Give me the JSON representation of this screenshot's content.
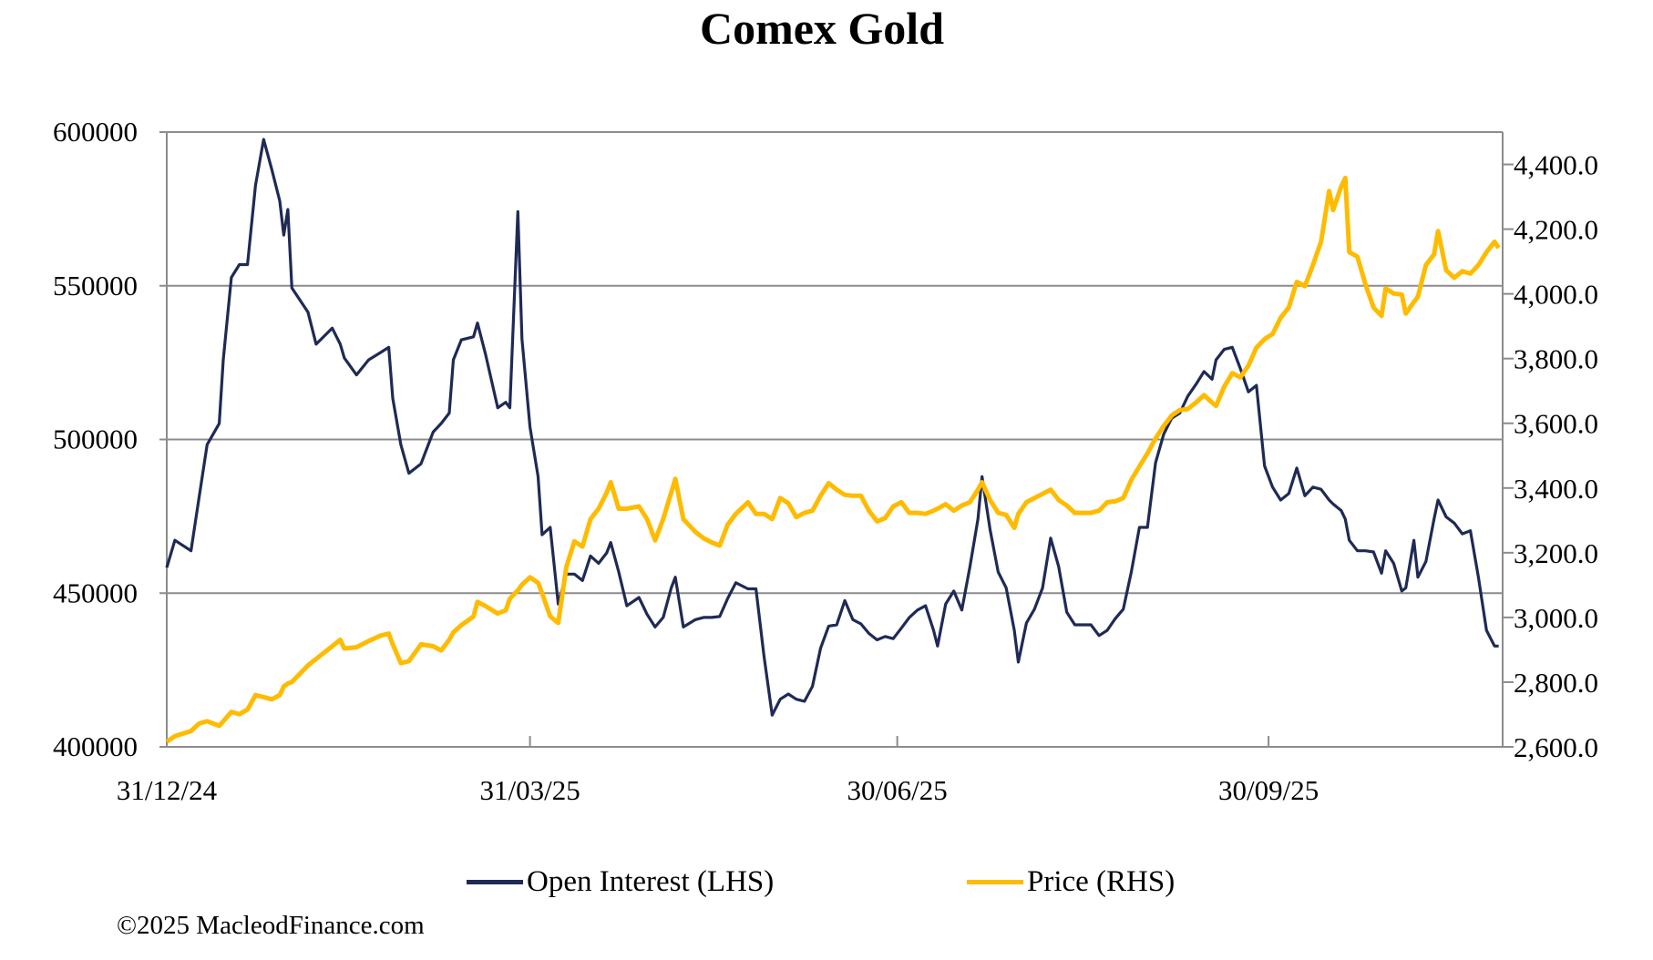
{
  "chart_data": {
    "type": "line",
    "title": "Comex Gold",
    "xlabel": "",
    "ylabel": "",
    "xlim": [
      "2024-12-31",
      "2025-11-27"
    ],
    "x_tick_labels": [
      "31/12/24",
      "31/03/25",
      "30/06/25",
      "30/09/25"
    ],
    "x_tick_dates": [
      "2024-12-31",
      "2025-03-31",
      "2025-06-30",
      "2025-09-30"
    ],
    "y_left": {
      "lim": [
        400000,
        600000
      ],
      "ticks": [
        400000,
        450000,
        500000,
        550000,
        600000
      ],
      "tick_labels": [
        "400000",
        "450000",
        "500000",
        "550000",
        "600000"
      ]
    },
    "y_right": {
      "lim": [
        2600,
        4500
      ],
      "ticks": [
        2600,
        2800,
        3000,
        3200,
        3400,
        3600,
        3800,
        4000,
        4200,
        4400
      ],
      "tick_labels": [
        "2,600.0",
        "2,800.0",
        "3,000.0",
        "3,200.0",
        "3,400.0",
        "3,600.0",
        "3,800.0",
        "4,000.0",
        "4,200.0",
        "4,400.0"
      ]
    },
    "grid": "horizontal major lines (left axis)",
    "legend_position": "bottom",
    "x": [
      "2024-12-31",
      "2025-01-02",
      "2025-01-06",
      "2025-01-08",
      "2025-01-10",
      "2025-01-13",
      "2025-01-14",
      "2025-01-16",
      "2025-01-18",
      "2025-01-20",
      "2025-01-22",
      "2025-01-24",
      "2025-01-26",
      "2025-01-28",
      "2025-01-29",
      "2025-01-30",
      "2025-01-31",
      "2025-02-04",
      "2025-02-06",
      "2025-02-10",
      "2025-02-12",
      "2025-02-13",
      "2025-02-16",
      "2025-02-19",
      "2025-02-22",
      "2025-02-24",
      "2025-02-25",
      "2025-02-27",
      "2025-03-01",
      "2025-03-04",
      "2025-03-07",
      "2025-03-09",
      "2025-03-11",
      "2025-03-12",
      "2025-03-14",
      "2025-03-17",
      "2025-03-18",
      "2025-03-20",
      "2025-03-23",
      "2025-03-25",
      "2025-03-26",
      "2025-03-28",
      "2025-03-29",
      "2025-03-31",
      "2025-04-02",
      "2025-04-03",
      "2025-04-05",
      "2025-04-07",
      "2025-04-09",
      "2025-04-11",
      "2025-04-13",
      "2025-04-15",
      "2025-04-17",
      "2025-04-19",
      "2025-04-20",
      "2025-04-22",
      "2025-04-24",
      "2025-04-27",
      "2025-04-29",
      "2025-05-01",
      "2025-05-03",
      "2025-05-05",
      "2025-05-06",
      "2025-05-08",
      "2025-05-11",
      "2025-05-13",
      "2025-05-15",
      "2025-05-17",
      "2025-05-19",
      "2025-05-21",
      "2025-05-24",
      "2025-05-26",
      "2025-05-28",
      "2025-05-30",
      "2025-06-01",
      "2025-06-03",
      "2025-06-05",
      "2025-06-07",
      "2025-06-09",
      "2025-06-11",
      "2025-06-13",
      "2025-06-15",
      "2025-06-17",
      "2025-06-19",
      "2025-06-21",
      "2025-06-23",
      "2025-06-25",
      "2025-06-27",
      "2025-06-29",
      "2025-07-01",
      "2025-07-03",
      "2025-07-05",
      "2025-07-07",
      "2025-07-09",
      "2025-07-10",
      "2025-07-12",
      "2025-07-14",
      "2025-07-16",
      "2025-07-18",
      "2025-07-20",
      "2025-07-21",
      "2025-07-23",
      "2025-07-25",
      "2025-07-27",
      "2025-07-29",
      "2025-07-30",
      "2025-08-01",
      "2025-08-03",
      "2025-08-05",
      "2025-08-07",
      "2025-08-09",
      "2025-08-11",
      "2025-08-13",
      "2025-08-15",
      "2025-08-17",
      "2025-08-19",
      "2025-08-21",
      "2025-08-23",
      "2025-08-25",
      "2025-08-27",
      "2025-08-29",
      "2025-08-31",
      "2025-09-02",
      "2025-09-04",
      "2025-09-06",
      "2025-09-08",
      "2025-09-10",
      "2025-09-12",
      "2025-09-14",
      "2025-09-16",
      "2025-09-17",
      "2025-09-19",
      "2025-09-21",
      "2025-09-23",
      "2025-09-25",
      "2025-09-27",
      "2025-09-29",
      "2025-10-01",
      "2025-10-03",
      "2025-10-05",
      "2025-10-07",
      "2025-10-09",
      "2025-10-11",
      "2025-10-13",
      "2025-10-15",
      "2025-10-16",
      "2025-10-18",
      "2025-10-19",
      "2025-10-20",
      "2025-10-22",
      "2025-10-24",
      "2025-10-26",
      "2025-10-28",
      "2025-10-29",
      "2025-10-31",
      "2025-11-02",
      "2025-11-03",
      "2025-11-05",
      "2025-11-06",
      "2025-11-08",
      "2025-11-10",
      "2025-11-11",
      "2025-11-13",
      "2025-11-15",
      "2025-11-17",
      "2025-11-19",
      "2025-11-21",
      "2025-11-23",
      "2025-11-25",
      "2025-11-26"
    ],
    "series": [
      {
        "name": "Open Interest (LHS)",
        "axis": "left",
        "color": "#1F2A55",
        "values": [
          458300,
          467200,
          463800,
          481000,
          498300,
          505200,
          525900,
          552700,
          556900,
          556900,
          582700,
          597600,
          587900,
          577600,
          566500,
          574800,
          549300,
          541400,
          531000,
          536200,
          531000,
          526500,
          521000,
          525900,
          528300,
          530000,
          513400,
          498300,
          489000,
          492100,
          502400,
          505200,
          508600,
          525900,
          532400,
          533400,
          537900,
          527600,
          510300,
          512100,
          510300,
          574100,
          532700,
          504100,
          487900,
          469000,
          471400,
          446500,
          456200,
          456200,
          454100,
          462100,
          459700,
          463100,
          466500,
          456900,
          445900,
          448600,
          443100,
          439000,
          442100,
          451700,
          455200,
          439000,
          441400,
          442100,
          442100,
          442400,
          448300,
          453400,
          451400,
          451400,
          429300,
          410300,
          415500,
          417200,
          415500,
          414800,
          419700,
          432100,
          439300,
          439700,
          447600,
          441400,
          440000,
          436900,
          434800,
          435900,
          435200,
          438600,
          442100,
          444500,
          445900,
          437900,
          432800,
          446500,
          450700,
          444500,
          458600,
          474100,
          487900,
          470700,
          456900,
          451700,
          437900,
          427600,
          440300,
          444800,
          451700,
          467900,
          458600,
          443800,
          439700,
          439700,
          439700,
          436200,
          437900,
          441700,
          444800,
          456900,
          471400,
          471400,
          492400,
          501700,
          506900,
          508600,
          514100,
          517900,
          522100,
          519600,
          525900,
          529300,
          530000,
          523100,
          515500,
          517600,
          491400,
          484500,
          480300,
          482400,
          490700,
          481700,
          484500,
          483800,
          480300,
          479000,
          476900,
          474100,
          467200,
          463800,
          463800,
          463400,
          456500,
          463800,
          459700,
          450700,
          451700,
          467200,
          455200,
          460300,
          474100,
          480300,
          474800,
          472800,
          469300,
          470300,
          455200,
          437900,
          432800,
          432800
        ]
      },
      {
        "name": "Price (RHS)",
        "axis": "right",
        "color": "#FFBB00",
        "values": [
          2616,
          2633,
          2649,
          2672,
          2679,
          2665,
          2679,
          2708,
          2701,
          2715,
          2760,
          2754,
          2747,
          2760,
          2787,
          2796,
          2800,
          2852,
          2872,
          2911,
          2931,
          2904,
          2908,
          2927,
          2944,
          2950,
          2917,
          2859,
          2865,
          2917,
          2911,
          2898,
          2931,
          2954,
          2976,
          3003,
          3048,
          3035,
          3012,
          3022,
          3058,
          3084,
          3101,
          3124,
          3107,
          3075,
          3003,
          2983,
          3156,
          3235,
          3219,
          3304,
          3336,
          3386,
          3418,
          3336,
          3336,
          3343,
          3304,
          3238,
          3304,
          3386,
          3428,
          3304,
          3264,
          3245,
          3232,
          3222,
          3287,
          3320,
          3356,
          3320,
          3320,
          3304,
          3369,
          3353,
          3310,
          3323,
          3330,
          3376,
          3415,
          3395,
          3379,
          3376,
          3376,
          3330,
          3297,
          3307,
          3343,
          3356,
          3323,
          3323,
          3320,
          3330,
          3336,
          3350,
          3330,
          3346,
          3356,
          3395,
          3418,
          3363,
          3323,
          3317,
          3277,
          3320,
          3356,
          3369,
          3382,
          3395,
          3363,
          3346,
          3323,
          3323,
          3323,
          3330,
          3356,
          3359,
          3369,
          3425,
          3467,
          3507,
          3553,
          3592,
          3624,
          3641,
          3644,
          3664,
          3687,
          3664,
          3654,
          3713,
          3755,
          3742,
          3778,
          3834,
          3860,
          3876,
          3926,
          3958,
          4037,
          4024,
          4089,
          4161,
          4318,
          4259,
          4331,
          4358,
          4129,
          4115,
          4030,
          3958,
          3932,
          4017,
          4001,
          3998,
          3939,
          3975,
          3991,
          4089,
          4122,
          4194,
          4073,
          4050,
          4070,
          4063,
          4089,
          4129,
          4161,
          4142
        ]
      }
    ]
  },
  "legend": {
    "items": [
      {
        "label": "Open Interest (LHS)",
        "color": "#1F2A55"
      },
      {
        "label": "Price (RHS)",
        "color": "#FFBB00"
      }
    ]
  },
  "footer": {
    "copyright": "©2025 MacleodFinance.com"
  },
  "colors": {
    "grid": "#8C8C8C",
    "axis": "#8C8C8C"
  }
}
